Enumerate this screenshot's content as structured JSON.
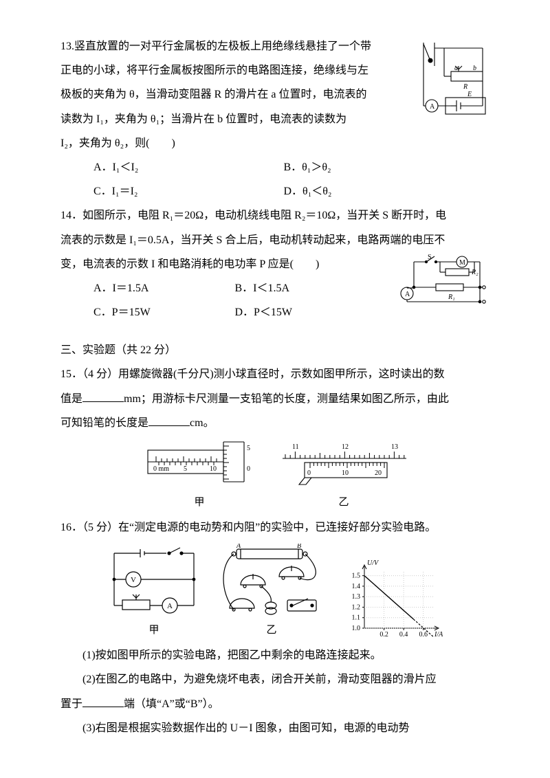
{
  "q13": {
    "stem1": "13.竖直放置的一对平行金属板的左极板上用绝缘线悬挂了一个带",
    "stem2": "正电的小球，将平行金属板按图所示的电路图连接，绝缘线与左",
    "stem3": "极板的夹角为 θ，当滑动变阻器 R 的滑片在 a 位置时，电流表的",
    "stem4": "读数为 I₁，夹角为 θ₁；当滑片在 b 位置时，电流表的读数为",
    "stem5": "I₂，夹角为 θ₂，则(　　)",
    "a": "A．I₁＜I₂",
    "b": "B．θ₁＞θ₂",
    "c": "C．I₁＝I₂",
    "d": "D．θ₁＜θ₂",
    "circuit": {
      "a_label": "a",
      "b_label": "b",
      "R": "R",
      "E": "E",
      "A": "A"
    }
  },
  "q14": {
    "stem1": "14．如图所示，电阻 R₁＝20Ω，电动机绕线电阻 R₂＝10Ω，当开关 S 断开时，电",
    "stem2": "流表的示数是 I₁＝0.5A，当开关 S 合上后，电动机转动起来，电路两端的电压不",
    "stem3": "变，电流表的示数 I 和电路消耗的电功率 P 应是(　　)",
    "a": "A．I＝1.5A",
    "b": "B．I＜1.5A",
    "c": "C．P＝15W",
    "d": "D．P＜15W",
    "circuit": {
      "S": "S",
      "M": "M",
      "R1": "R₁",
      "R2": "R₂",
      "A": "A"
    }
  },
  "sec3": "三、实验题（共 22 分）",
  "q15": {
    "stem1": "15．（4 分）用螺旋微器(千分尺)测小球直径时，示数如图甲所示，这时读出的数",
    "stem2_a": "值是",
    "stem2_b": "mm；用游标卡尺测量一支铅笔的长度，测量结果如图乙所示，由此",
    "stem3_a": "可知铅笔的长度是",
    "stem3_b": "cm。",
    "cap1": "甲",
    "cap2": "乙",
    "micrometer": {
      "zero": "0",
      "mm": "mm",
      "t5": "5",
      "t10": "10",
      "drum0": "0",
      "drum5": "5"
    },
    "vernier": {
      "m11": "11",
      "m12": "12",
      "m13": "13",
      "v0": "0",
      "v10": "10",
      "v20": "20"
    }
  },
  "q16": {
    "stem": "16．（5 分）在“测定电源的电动势和内阻”的实验中，已连接好部分实验电路。",
    "p1": "(1)按如图甲所示的实验电路，把图乙中剩余的电路连接起来。",
    "p2a": "(2)在图乙的电路中，为避免烧坏电表，闭合开关前，滑动变阻器的滑片应",
    "p2b_a": "置于",
    "p2b_b": "端（填“A”或“B”）。",
    "p3": "(3)右图是根据实验数据作出的 U－I 图象，由图可知，电源的电动势",
    "cap1": "甲",
    "cap2": "乙",
    "schem": {
      "V": "V",
      "A": "A"
    },
    "photo": {
      "A": "A",
      "B": "B"
    },
    "graph": {
      "ylabel": "U/V",
      "xlabel": "I/A",
      "yticks": [
        "1.0",
        "1.1",
        "1.2",
        "1.3",
        "1.4",
        "1.5"
      ],
      "xticks": [
        "0.2",
        "0.4",
        "0.6"
      ],
      "xlim": [
        0,
        0.7
      ],
      "ylim": [
        1.0,
        1.55
      ],
      "line_start": [
        0,
        1.5
      ],
      "line_end": [
        0.7,
        0.92
      ],
      "solid_until": 0.5,
      "stroke": "#000000",
      "grid": "#cccccc",
      "fontsize": 10
    }
  }
}
